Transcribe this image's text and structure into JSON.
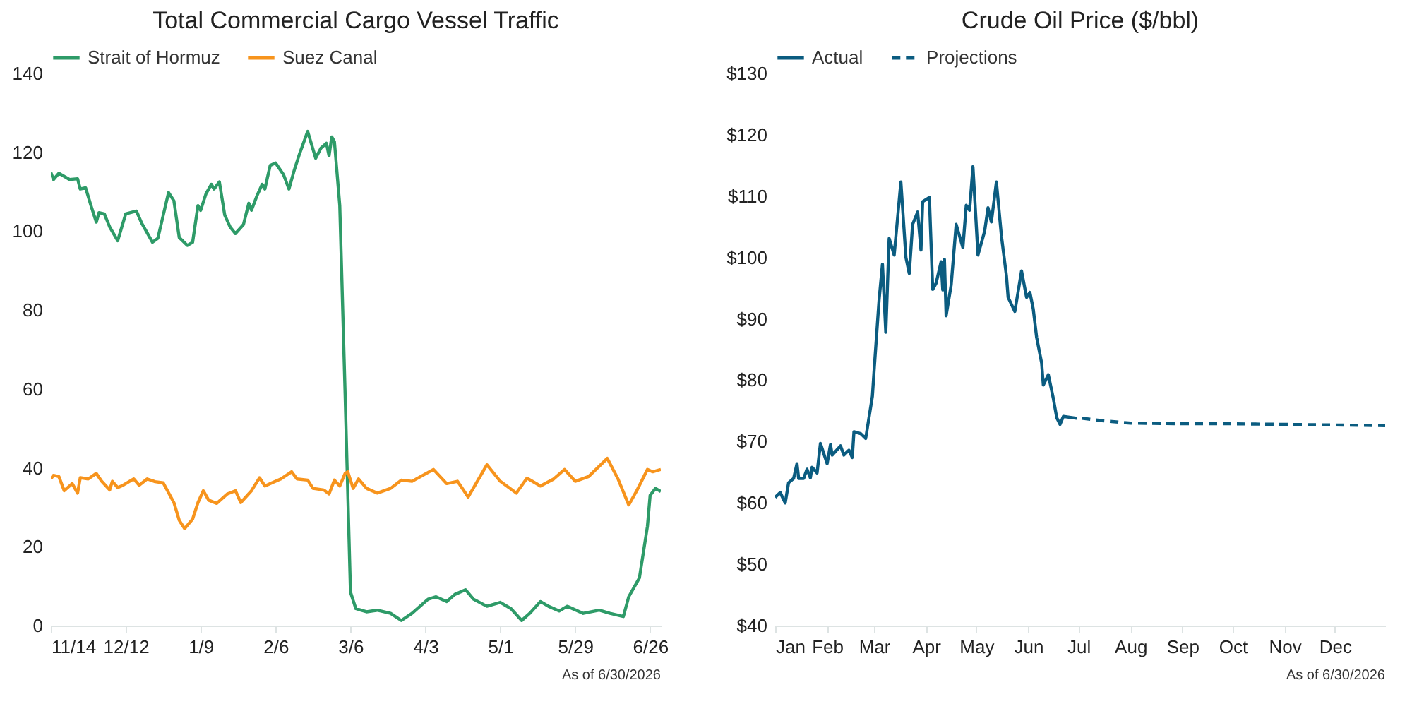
{
  "chart_data": [
    {
      "type": "line",
      "title": "Total Commercial Cargo Vessel Traffic",
      "legend": "top",
      "grid": false,
      "xlim": [
        "2025-11-14",
        "2026-06-30"
      ],
      "xticks": [
        {
          "value": "2025-11-14",
          "label": "11/14"
        },
        {
          "value": "2025-12-12",
          "label": "12/12"
        },
        {
          "value": "2026-01-09",
          "label": "1/9"
        },
        {
          "value": "2026-02-06",
          "label": "2/6"
        },
        {
          "value": "2026-03-06",
          "label": "3/6"
        },
        {
          "value": "2026-04-03",
          "label": "4/3"
        },
        {
          "value": "2026-05-01",
          "label": "5/1"
        },
        {
          "value": "2026-05-29",
          "label": "5/29"
        },
        {
          "value": "2026-06-26",
          "label": "6/26"
        }
      ],
      "ylim": [
        0,
        140
      ],
      "yticks": [
        0,
        20,
        40,
        60,
        80,
        100,
        120,
        140
      ],
      "annotations": [
        "As of 6/30/2026"
      ],
      "series": [
        {
          "name": "Strait of Hormuz",
          "color": "#2e9b68",
          "x": [
            "2025-11-14",
            "2025-11-15",
            "2025-11-17",
            "2025-11-21",
            "2025-11-24",
            "2025-11-25",
            "2025-11-27",
            "2025-11-29",
            "2025-12-01",
            "2025-12-02",
            "2025-12-04",
            "2025-12-06",
            "2025-12-09",
            "2025-12-12",
            "2025-12-16",
            "2025-12-18",
            "2025-12-22",
            "2025-12-24",
            "2025-12-28",
            "2025-12-30",
            "2026-01-01",
            "2026-01-04",
            "2026-01-06",
            "2026-01-08",
            "2026-01-09",
            "2026-01-11",
            "2026-01-13",
            "2026-01-14",
            "2026-01-16",
            "2026-01-18",
            "2026-01-20",
            "2026-01-22",
            "2026-01-25",
            "2026-01-27",
            "2026-01-28",
            "2026-01-30",
            "2026-02-01",
            "2026-02-02",
            "2026-02-04",
            "2026-02-06",
            "2026-02-09",
            "2026-02-11",
            "2026-02-13",
            "2026-02-15",
            "2026-02-18",
            "2026-02-21",
            "2026-02-23",
            "2026-02-25",
            "2026-02-26",
            "2026-02-27",
            "2026-02-28",
            "2026-03-02",
            "2026-03-04",
            "2026-03-06",
            "2026-03-08",
            "2026-03-12",
            "2026-03-16",
            "2026-03-21",
            "2026-03-25",
            "2026-03-29",
            "2026-04-04",
            "2026-04-07",
            "2026-04-11",
            "2026-04-14",
            "2026-04-18",
            "2026-04-21",
            "2026-04-26",
            "2026-05-01",
            "2026-05-05",
            "2026-05-09",
            "2026-05-12",
            "2026-05-16",
            "2026-05-19",
            "2026-05-23",
            "2026-05-26",
            "2026-06-01",
            "2026-06-07",
            "2026-06-11",
            "2026-06-16",
            "2026-06-18",
            "2026-06-22",
            "2026-06-25",
            "2026-06-26",
            "2026-06-28",
            "2026-06-30"
          ],
          "values": [
            114.9,
            113.1,
            114.7,
            113.1,
            113.3,
            110.7,
            111,
            106.5,
            102.3,
            104.7,
            104.4,
            101.1,
            97.6,
            104.4,
            105.1,
            102,
            97.2,
            98.2,
            109.8,
            107.7,
            98.4,
            96.4,
            97.2,
            106.5,
            105.3,
            109.5,
            111.9,
            110.7,
            112.5,
            104.1,
            101.1,
            99.4,
            101.7,
            107.1,
            105.3,
            108.9,
            111.9,
            110.7,
            116.7,
            117.3,
            114.3,
            110.7,
            115.5,
            119.7,
            125.3,
            118.5,
            121.1,
            122.3,
            119.1,
            123.9,
            122.7,
            106.5,
            58.7,
            8.5,
            4.3,
            3.5,
            3.9,
            3.1,
            1.3,
            3.1,
            6.7,
            7.3,
            6.1,
            7.9,
            9.1,
            6.7,
            4.9,
            5.9,
            4.3,
            1.3,
            3.1,
            6.1,
            4.9,
            3.7,
            4.9,
            3.1,
            3.9,
            3.1,
            2.3,
            7.3,
            12.1,
            25.2,
            33,
            34.8,
            34
          ]
        },
        {
          "name": "Suez Canal",
          "color": "#f7941d",
          "x": [
            "2025-11-14",
            "2025-11-15",
            "2025-11-17",
            "2025-11-19",
            "2025-11-22",
            "2025-11-24",
            "2025-11-25",
            "2025-11-28",
            "2025-12-01",
            "2025-12-03",
            "2025-12-06",
            "2025-12-07",
            "2025-12-09",
            "2025-12-11",
            "2025-12-15",
            "2025-12-17",
            "2025-12-20",
            "2025-12-23",
            "2025-12-26",
            "2025-12-30",
            "2026-01-01",
            "2026-01-03",
            "2026-01-06",
            "2026-01-08",
            "2026-01-10",
            "2026-01-12",
            "2026-01-15",
            "2026-01-19",
            "2026-01-22",
            "2026-01-24",
            "2026-01-28",
            "2026-01-31",
            "2026-02-02",
            "2026-02-06",
            "2026-02-08",
            "2026-02-12",
            "2026-02-14",
            "2026-02-18",
            "2026-02-20",
            "2026-02-24",
            "2026-02-26",
            "2026-02-28",
            "2026-03-02",
            "2026-03-04",
            "2026-03-05",
            "2026-03-07",
            "2026-03-09",
            "2026-03-12",
            "2026-03-16",
            "2026-03-21",
            "2026-03-25",
            "2026-03-29",
            "2026-04-06",
            "2026-04-11",
            "2026-04-15",
            "2026-04-19",
            "2026-04-26",
            "2026-05-01",
            "2026-05-07",
            "2026-05-11",
            "2026-05-16",
            "2026-05-21",
            "2026-05-25",
            "2026-05-29",
            "2026-06-03",
            "2026-06-10",
            "2026-06-14",
            "2026-06-18",
            "2026-06-21",
            "2026-06-25",
            "2026-06-27",
            "2026-06-30"
          ],
          "values": [
            37.2,
            38.1,
            37.8,
            34.2,
            36,
            33.6,
            37.5,
            37.2,
            38.6,
            36.6,
            34.4,
            36.6,
            35,
            35.6,
            37.2,
            35.6,
            37.2,
            36.5,
            36.2,
            31.2,
            26.7,
            24.6,
            27,
            31.2,
            34.2,
            31.8,
            31,
            33.4,
            34.2,
            31.2,
            34.2,
            37.5,
            35.4,
            36.6,
            37.2,
            39,
            37.2,
            36.9,
            34.8,
            34.4,
            33.4,
            36.9,
            35.4,
            38.6,
            39,
            34.8,
            37.2,
            34.8,
            33.6,
            34.8,
            36.9,
            36.6,
            39.6,
            36,
            36.6,
            32.6,
            40.8,
            36.6,
            33.6,
            37.4,
            35.4,
            37.2,
            39.6,
            36.6,
            37.8,
            42.4,
            37.2,
            30.6,
            34.2,
            39.6,
            39,
            39.6
          ]
        }
      ]
    },
    {
      "type": "line",
      "title": "Crude Oil Price ($/bbl)",
      "legend": "top",
      "grid": false,
      "xlim": [
        "2026-01-01",
        "2026-12-31"
      ],
      "xticks": [
        {
          "value": "2026-01-01",
          "label": "Jan"
        },
        {
          "value": "2026-02-01",
          "label": "Feb"
        },
        {
          "value": "2026-03-01",
          "label": "Mar"
        },
        {
          "value": "2026-04-01",
          "label": "Apr"
        },
        {
          "value": "2026-05-01",
          "label": "May"
        },
        {
          "value": "2026-06-01",
          "label": "Jun"
        },
        {
          "value": "2026-07-01",
          "label": "Jul"
        },
        {
          "value": "2026-08-01",
          "label": "Aug"
        },
        {
          "value": "2026-09-01",
          "label": "Sep"
        },
        {
          "value": "2026-10-01",
          "label": "Oct"
        },
        {
          "value": "2026-11-01",
          "label": "Nov"
        },
        {
          "value": "2026-12-01",
          "label": "Dec"
        }
      ],
      "ylim": [
        40,
        130
      ],
      "yticks": [
        {
          "value": 40,
          "label": "$40"
        },
        {
          "value": 50,
          "label": "$50"
        },
        {
          "value": 60,
          "label": "$60"
        },
        {
          "value": 70,
          "label": "$70"
        },
        {
          "value": 80,
          "label": "$80"
        },
        {
          "value": 90,
          "label": "$90"
        },
        {
          "value": 100,
          "label": "$100"
        },
        {
          "value": 110,
          "label": "$110"
        },
        {
          "value": 120,
          "label": "$120"
        },
        {
          "value": 130,
          "label": "$130"
        }
      ],
      "annotations": [
        "As of 6/30/2026"
      ],
      "series": [
        {
          "name": "Actual",
          "color": "#0b5c80",
          "line_style": "solid",
          "x": [
            "2026-01-01",
            "2026-01-04",
            "2026-01-07",
            "2026-01-09",
            "2026-01-12",
            "2026-01-14",
            "2026-01-15",
            "2026-01-18",
            "2026-01-20",
            "2026-01-22",
            "2026-01-23",
            "2026-01-26",
            "2026-01-28",
            "2026-02-01",
            "2026-02-03",
            "2026-02-04",
            "2026-02-09",
            "2026-02-11",
            "2026-02-14",
            "2026-02-16",
            "2026-02-17",
            "2026-02-21",
            "2026-02-24",
            "2026-02-28",
            "2026-03-01",
            "2026-03-04",
            "2026-03-06",
            "2026-03-08",
            "2026-03-10",
            "2026-03-13",
            "2026-03-17",
            "2026-03-20",
            "2026-03-22",
            "2026-03-24",
            "2026-03-27",
            "2026-03-29",
            "2026-03-30",
            "2026-04-03",
            "2026-04-05",
            "2026-04-07",
            "2026-04-10",
            "2026-04-11",
            "2026-04-12",
            "2026-04-13",
            "2026-04-16",
            "2026-04-19",
            "2026-04-23",
            "2026-04-25",
            "2026-04-27",
            "2026-04-29",
            "2026-05-02",
            "2026-05-06",
            "2026-05-08",
            "2026-05-10",
            "2026-05-13",
            "2026-05-16",
            "2026-05-19",
            "2026-05-20",
            "2026-05-24",
            "2026-05-28",
            "2026-05-31",
            "2026-06-02",
            "2026-06-04",
            "2026-06-06",
            "2026-06-09",
            "2026-06-10",
            "2026-06-13",
            "2026-06-16",
            "2026-06-18",
            "2026-06-20",
            "2026-06-22",
            "2026-06-30"
          ],
          "values": [
            60.9,
            61.7,
            60,
            63.3,
            64,
            66.4,
            64,
            64,
            65.5,
            64.1,
            65.8,
            64.9,
            69.7,
            66.4,
            69.5,
            67.8,
            69.3,
            67.8,
            68.6,
            67.4,
            71.6,
            71.3,
            70.5,
            77.4,
            81.5,
            93.1,
            98.9,
            87.8,
            103.1,
            100.4,
            112.3,
            100,
            97.4,
            105.4,
            107.4,
            101.2,
            109.1,
            109.8,
            94.8,
            95.8,
            99.3,
            94.7,
            99.7,
            90.5,
            95.5,
            105.4,
            101.6,
            108.5,
            107.7,
            114.8,
            100.4,
            104.3,
            108.1,
            105.8,
            112.3,
            103.5,
            97,
            93.5,
            91.2,
            97.8,
            93.5,
            94.3,
            91.6,
            87,
            82.8,
            79.2,
            80.9,
            77,
            73.9,
            72.8,
            74.1,
            73.8
          ]
        },
        {
          "name": "Projections",
          "color": "#0b5c80",
          "line_style": "dashed",
          "x": [
            "2026-07-03",
            "2026-07-15",
            "2026-08-01",
            "2026-09-01",
            "2026-10-01",
            "2026-11-01",
            "2026-12-01",
            "2026-12-31"
          ],
          "values": [
            73.8,
            73.4,
            73,
            72.9,
            72.9,
            72.8,
            72.7,
            72.6
          ]
        }
      ]
    }
  ]
}
